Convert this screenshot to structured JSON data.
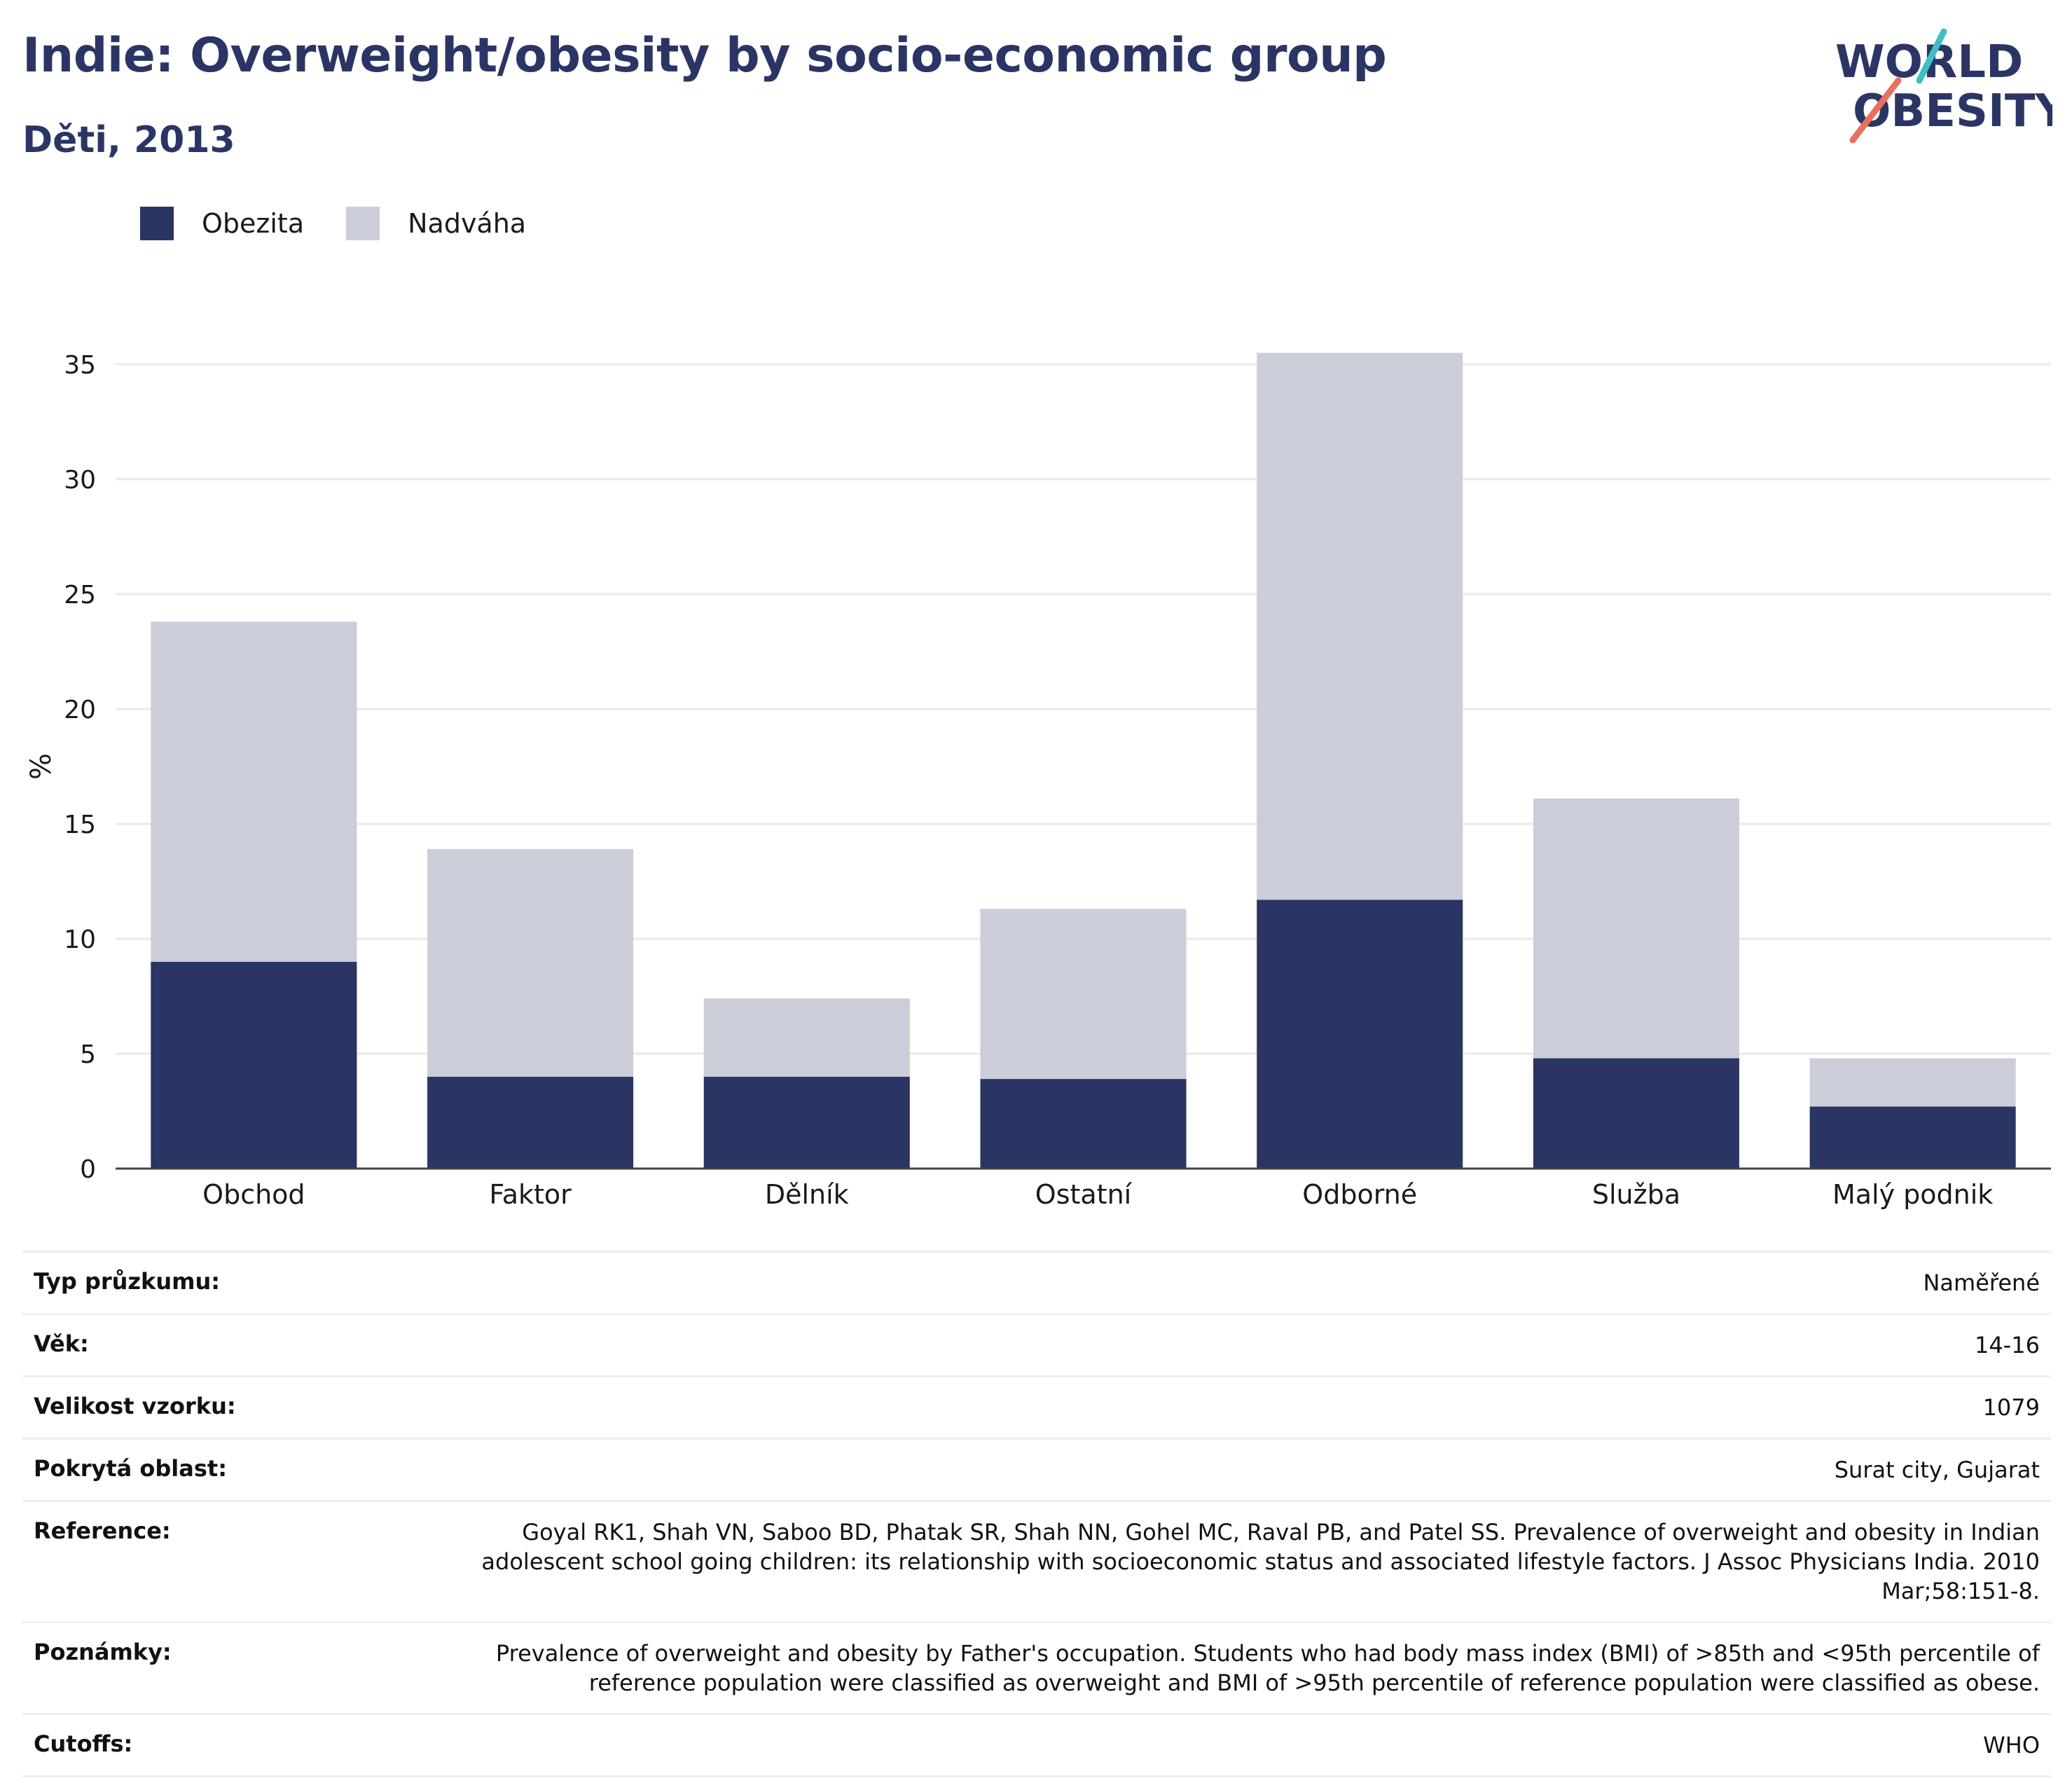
{
  "header": {
    "title": "Indie: Overweight/obesity by socio-economic group",
    "subtitle": "Děti, 2013"
  },
  "logo": {
    "line1": "WORLD",
    "line2": "OBESITY",
    "accent_teal": "#3fbfc4",
    "accent_coral": "#e8705f"
  },
  "colors": {
    "obesity": "#2a3563",
    "overweight": "#cbcdd8",
    "grid": "#e9e9e9",
    "axis": "#444444"
  },
  "chart_data": {
    "type": "bar",
    "stacked": true,
    "categories": [
      "Obchod",
      "Faktor",
      "Dělník",
      "Ostatní",
      "Odborné",
      "Služba",
      "Malý podnik"
    ],
    "series": [
      {
        "name": "Obezita",
        "values": [
          9.0,
          4.0,
          4.0,
          3.9,
          11.7,
          4.8,
          2.7
        ]
      },
      {
        "name": "Nadváha",
        "values": [
          14.8,
          9.9,
          3.4,
          7.4,
          23.8,
          11.3,
          2.1
        ]
      }
    ],
    "ylabel": "%",
    "ylim": [
      0,
      35
    ],
    "yticks": [
      0,
      5,
      10,
      15,
      20,
      25,
      30,
      35
    ],
    "legend_position": "top-left",
    "grid": true
  },
  "meta": [
    {
      "label": "Typ průzkumu:",
      "value": "Naměřené"
    },
    {
      "label": "Věk:",
      "value": "14-16"
    },
    {
      "label": "Velikost vzorku:",
      "value": "1079"
    },
    {
      "label": "Pokrytá oblast:",
      "value": "Surat city, Gujarat"
    },
    {
      "label": "Reference:",
      "value": "Goyal RK1, Shah VN, Saboo BD, Phatak SR, Shah NN, Gohel MC, Raval PB, and Patel SS. Prevalence of overweight and obesity in Indian adolescent school going children: its relationship with socioeconomic status and associated lifestyle factors. J Assoc Physicians India. 2010 Mar;58:151-8."
    },
    {
      "label": "Poznámky:",
      "value": "Prevalence of overweight and obesity by Father's occupation. Students who had body mass index (BMI) of >85th and <95th percentile of reference population were classified as overweight and BMI of >95th percentile of reference population were classified as obese."
    },
    {
      "label": "Cutoffs:",
      "value": "WHO"
    }
  ]
}
